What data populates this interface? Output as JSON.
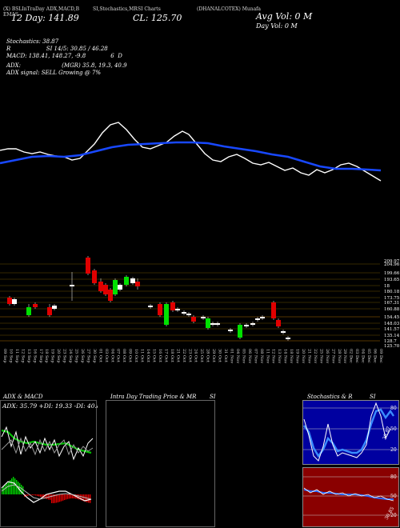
{
  "header": {
    "line1": "(X) BSLInTraDay ADX,MACD,B",
    "line1b": "SI,Stochastics,MR",
    "line1c": "SI Charts",
    "line1d": "(DHANALCOTEX) Munafa",
    "line2": "EMAS",
    "ema": "12 Day: 141.89",
    "cl": "CL: 125.70",
    "avg_vol": "Avg Vol: 0  M",
    "day_vol": "Day Vol: 0   M",
    "stochastics": "Stochastics: 38.87",
    "rsi": "R                    SI 14/5: 30.85 / 46.28",
    "macd": "MACD: 138.41, 148.27, -9.8              6  D",
    "adx": "ADX:                       (MGR) 35.8, 19.3, 40.9",
    "adx_signal": "ADX  signal: SELL Growing @ 7%"
  },
  "price_axis": [
    "209.97",
    "204.96",
    "199.66",
    "193.65",
    "18",
    "180.18",
    "173.75",
    "167.31",
    "160.88",
    "154.45",
    "148.03",
    "141.57",
    "135.14",
    "128.7",
    "125.70"
  ],
  "dates": [
    "09 Sep",
    "10 Sep",
    "11 Sep",
    "12 Sep",
    "13 Sep",
    "16 Sep",
    "17 Sep",
    "18 Sep",
    "19 Sep",
    "20 Sep",
    "23 Sep",
    "24 Sep",
    "25 Sep",
    "26 Sep",
    "27 Sep",
    "30 Sep",
    "01 Oct",
    "03 Oct",
    "04 Oct",
    "07 Oct",
    "08 Oct",
    "09 Oct",
    "10 Oct",
    "11 Oct",
    "14 Oct",
    "15 Oct",
    "16 Oct",
    "17 Oct",
    "18 Oct",
    "21 Oct",
    "22 Oct",
    "23 Oct",
    "24 Oct",
    "25 Oct",
    "28 Oct",
    "29 Oct",
    "30 Oct",
    "31 Oct",
    "01 Nov",
    "04 Nov",
    "05 Nov",
    "06 Nov",
    "07 Nov",
    "08 Nov",
    "11 Nov",
    "12 Nov",
    "13 Nov",
    "14 Nov",
    "18 Nov",
    "19 Nov",
    "20 Nov",
    "21 Nov",
    "22 Nov",
    "25 Nov",
    "26 Nov",
    "27 Nov",
    "28 Nov",
    "29 Nov",
    "02 Dec",
    "03 Dec",
    "04 Dec",
    "05 Dec",
    "06 Dec",
    "09 Dec"
  ],
  "panels": {
    "adx_title": "ADX  & MACD",
    "adx_values": "ADX: 35.79  +DI: 19.33  -DI: 40.89",
    "intraday_title": "Intra  Day Trading Price  & MR",
    "intraday_si": "SI",
    "stoch_title": "Stochastics & R",
    "stoch_si": "SI",
    "stoch_axis": [
      "80",
      "50",
      "20"
    ],
    "rsi_axis": [
      "80",
      "50",
      "20"
    ],
    "stoch_value": "38.87",
    "rsi_value": "30.85"
  },
  "colors": {
    "bull": "#00e000",
    "bear": "#e00000",
    "ema": "#1040ff",
    "grid": "#8a6a00"
  }
}
